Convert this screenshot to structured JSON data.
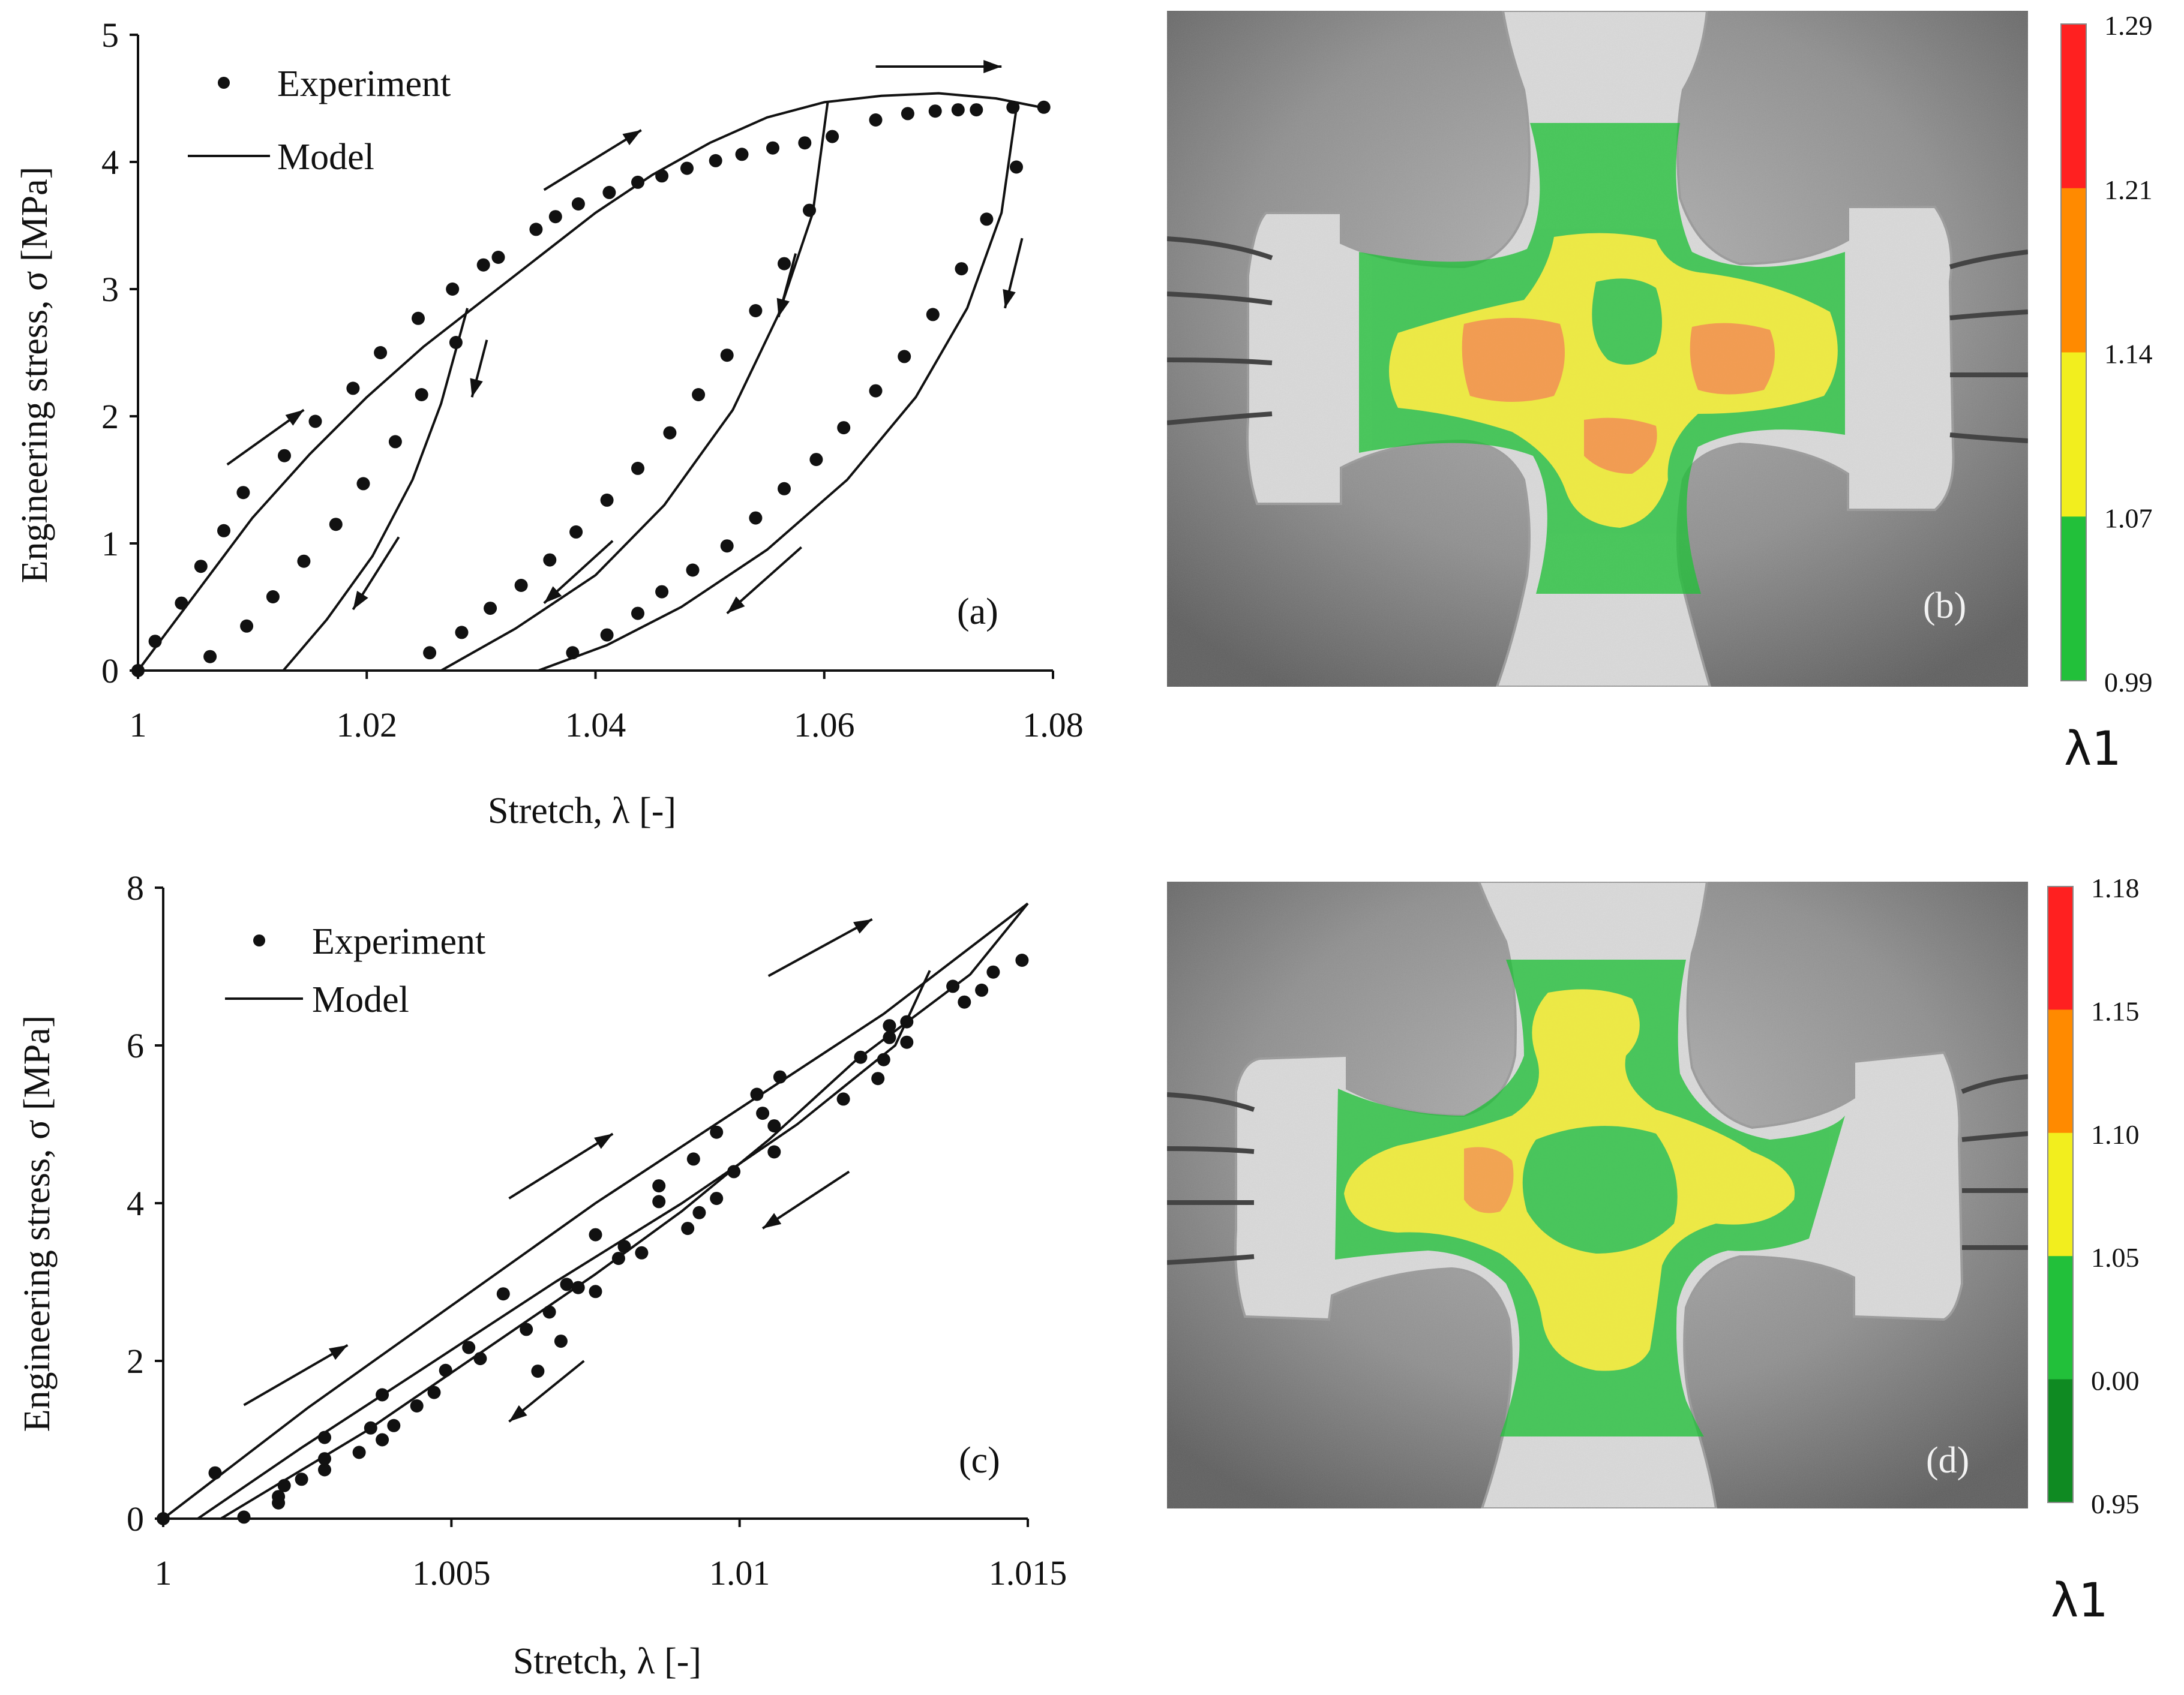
{
  "colors": {
    "ink": "#111111",
    "green": "#22c03a",
    "dark_green": "#0f8a22",
    "yellow": "#f2ee1e",
    "orange": "#ff8a00",
    "red": "#ff2020",
    "photo_bg": "#8e8e8e",
    "specimen": "#d9d9d9"
  },
  "chart_data": [
    {
      "type": "scatter",
      "panel_label": "(a)",
      "xlabel": "Stretch, λ [-]",
      "ylabel": "Engineering stress, σ [MPa]",
      "xlim": [
        1,
        1.08
      ],
      "ylim": [
        0,
        5
      ],
      "xticks": [
        1,
        1.02,
        1.04,
        1.06,
        1.08
      ],
      "xtick_labels": [
        "1",
        "1.02",
        "1.04",
        "1.06",
        "1.08"
      ],
      "yticks": [
        0,
        1,
        2,
        3,
        4,
        5
      ],
      "ytick_labels": [
        "0",
        "1",
        "2",
        "3",
        "4",
        "5"
      ],
      "legend": {
        "placement": "top-left",
        "entries": [
          "Experiment",
          "Model"
        ]
      },
      "series": [
        {
          "name": "Experiment",
          "kind": "points",
          "points": [
            [
              1.0,
              0.0
            ],
            [
              1.0015,
              0.23
            ],
            [
              1.0038,
              0.53
            ],
            [
              1.0055,
              0.82
            ],
            [
              1.0075,
              1.1
            ],
            [
              1.0092,
              1.4
            ],
            [
              1.0128,
              1.69
            ],
            [
              1.0155,
              1.96
            ],
            [
              1.0188,
              2.22
            ],
            [
              1.0212,
              2.5
            ],
            [
              1.0245,
              2.77
            ],
            [
              1.0275,
              3.0
            ],
            [
              1.0302,
              3.19
            ],
            [
              1.0315,
              3.25
            ],
            [
              1.0348,
              3.47
            ],
            [
              1.0365,
              3.57
            ],
            [
              1.0385,
              3.67
            ],
            [
              1.0412,
              3.76
            ],
            [
              1.0437,
              3.84
            ],
            [
              1.0458,
              3.89
            ],
            [
              1.048,
              3.95
            ],
            [
              1.0505,
              4.01
            ],
            [
              1.0528,
              4.06
            ],
            [
              1.0555,
              4.11
            ],
            [
              1.0583,
              4.15
            ],
            [
              1.0607,
              4.2
            ],
            [
              1.0645,
              4.33
            ],
            [
              1.0673,
              4.38
            ],
            [
              1.0697,
              4.4
            ],
            [
              1.0717,
              4.41
            ],
            [
              1.0733,
              4.41
            ],
            [
              1.0765,
              4.43
            ],
            [
              1.0792,
              4.43
            ],
            [
              1.0063,
              0.11
            ],
            [
              1.0095,
              0.35
            ],
            [
              1.0118,
              0.58
            ],
            [
              1.0145,
              0.86
            ],
            [
              1.0173,
              1.15
            ],
            [
              1.0197,
              1.47
            ],
            [
              1.0225,
              1.8
            ],
            [
              1.0248,
              2.17
            ],
            [
              1.0278,
              2.58
            ],
            [
              1.0255,
              0.14
            ],
            [
              1.0283,
              0.3
            ],
            [
              1.0308,
              0.49
            ],
            [
              1.0335,
              0.67
            ],
            [
              1.036,
              0.87
            ],
            [
              1.0383,
              1.09
            ],
            [
              1.041,
              1.34
            ],
            [
              1.0437,
              1.59
            ],
            [
              1.0465,
              1.87
            ],
            [
              1.049,
              2.17
            ],
            [
              1.0515,
              2.48
            ],
            [
              1.054,
              2.83
            ],
            [
              1.0565,
              3.2
            ],
            [
              1.0587,
              3.62
            ],
            [
              1.038,
              0.14
            ],
            [
              1.041,
              0.28
            ],
            [
              1.0437,
              0.45
            ],
            [
              1.0458,
              0.62
            ],
            [
              1.0485,
              0.79
            ],
            [
              1.0515,
              0.98
            ],
            [
              1.054,
              1.2
            ],
            [
              1.0565,
              1.43
            ],
            [
              1.0593,
              1.66
            ],
            [
              1.0617,
              1.91
            ],
            [
              1.0645,
              2.2
            ],
            [
              1.067,
              2.47
            ],
            [
              1.0695,
              2.8
            ],
            [
              1.072,
              3.16
            ],
            [
              1.0742,
              3.55
            ],
            [
              1.0768,
              3.96
            ]
          ]
        },
        {
          "name": "Model",
          "kind": "line",
          "segments": [
            [
              [
                1.0,
                0.0
              ],
              [
                1.005,
                0.6
              ],
              [
                1.01,
                1.2
              ],
              [
                1.015,
                1.7
              ],
              [
                1.02,
                2.15
              ],
              [
                1.025,
                2.55
              ],
              [
                1.03,
                2.9
              ],
              [
                1.035,
                3.25
              ],
              [
                1.04,
                3.6
              ],
              [
                1.045,
                3.9
              ],
              [
                1.05,
                4.15
              ],
              [
                1.055,
                4.35
              ],
              [
                1.06,
                4.47
              ],
              [
                1.065,
                4.52
              ],
              [
                1.07,
                4.54
              ],
              [
                1.075,
                4.5
              ],
              [
                1.0795,
                4.42
              ]
            ],
            [
              [
                1.0288,
                2.85
              ],
              [
                1.0265,
                2.1
              ],
              [
                1.024,
                1.5
              ],
              [
                1.0205,
                0.9
              ],
              [
                1.0165,
                0.4
              ],
              [
                1.0127,
                0.0
              ]
            ],
            [
              [
                1.0603,
                4.47
              ],
              [
                1.059,
                3.6
              ],
              [
                1.056,
                2.8
              ],
              [
                1.052,
                2.05
              ],
              [
                1.046,
                1.3
              ],
              [
                1.04,
                0.75
              ],
              [
                1.033,
                0.33
              ],
              [
                1.0265,
                0.0
              ]
            ],
            [
              [
                1.0768,
                4.42
              ],
              [
                1.0755,
                3.6
              ],
              [
                1.0725,
                2.85
              ],
              [
                1.068,
                2.15
              ],
              [
                1.062,
                1.5
              ],
              [
                1.055,
                0.95
              ],
              [
                1.0475,
                0.5
              ],
              [
                1.041,
                0.2
              ],
              [
                1.035,
                0.0
              ]
            ]
          ]
        }
      ],
      "arrows": [
        {
          "from": [
            1.0078,
            1.62
          ],
          "to": [
            1.0145,
            2.05
          ]
        },
        {
          "from": [
            1.0355,
            3.78
          ],
          "to": [
            1.044,
            4.25
          ]
        },
        {
          "from": [
            1.0645,
            4.75
          ],
          "to": [
            1.0755,
            4.75
          ]
        },
        {
          "from": [
            1.0305,
            2.6
          ],
          "to": [
            1.0292,
            2.15
          ]
        },
        {
          "from": [
            1.0228,
            1.05
          ],
          "to": [
            1.0188,
            0.48
          ]
        },
        {
          "from": [
            1.0575,
            3.28
          ],
          "to": [
            1.056,
            2.78
          ]
        },
        {
          "from": [
            1.0415,
            1.02
          ],
          "to": [
            1.0355,
            0.53
          ]
        },
        {
          "from": [
            1.0773,
            3.4
          ],
          "to": [
            1.0758,
            2.85
          ]
        },
        {
          "from": [
            1.058,
            0.97
          ],
          "to": [
            1.0515,
            0.45
          ]
        }
      ]
    },
    {
      "type": "heatmap",
      "panel_label": "(b)",
      "colorbar_title": "λ1",
      "colorbar_labels": [
        "1.29",
        "1.21",
        "1.14",
        "1.07",
        "0.99"
      ],
      "colorbar_colors": [
        "#ff2020",
        "#ff8a00",
        "#f2ee1e",
        "#22c03a"
      ]
    },
    {
      "type": "scatter",
      "panel_label": "(c)",
      "xlabel": "Stretch, λ [-]",
      "ylabel": "Engineering stress, σ [MPa]",
      "xlim": [
        1,
        1.015
      ],
      "ylim": [
        0,
        8
      ],
      "xticks": [
        1,
        1.005,
        1.01,
        1.015
      ],
      "xtick_labels": [
        "1",
        "1.005",
        "1.01",
        "1.015"
      ],
      "yticks": [
        0,
        2,
        4,
        6,
        8
      ],
      "ytick_labels": [
        "0",
        "2",
        "4",
        "6",
        "8"
      ],
      "legend": {
        "placement": "top-left",
        "entries": [
          "Experiment",
          "Model"
        ]
      },
      "series": [
        {
          "name": "Experiment",
          "kind": "points",
          "points": [
            [
              1.0,
              0.0
            ],
            [
              1.0009,
              0.58
            ],
            [
              1.0014,
              0.02
            ],
            [
              1.002,
              0.2
            ],
            [
              1.002,
              0.28
            ],
            [
              1.0021,
              0.42
            ],
            [
              1.0024,
              0.5
            ],
            [
              1.0028,
              0.62
            ],
            [
              1.0028,
              0.76
            ],
            [
              1.0028,
              1.03
            ],
            [
              1.0034,
              0.84
            ],
            [
              1.0036,
              1.15
            ],
            [
              1.0038,
              1.0
            ],
            [
              1.0038,
              1.57
            ],
            [
              1.004,
              1.18
            ],
            [
              1.0044,
              1.43
            ],
            [
              1.0047,
              1.6
            ],
            [
              1.0049,
              1.88
            ],
            [
              1.0053,
              2.17
            ],
            [
              1.0055,
              2.03
            ],
            [
              1.0059,
              2.85
            ],
            [
              1.0063,
              2.4
            ],
            [
              1.0065,
              1.87
            ],
            [
              1.0067,
              2.62
            ],
            [
              1.0069,
              2.25
            ],
            [
              1.007,
              2.97
            ],
            [
              1.0072,
              2.93
            ],
            [
              1.0075,
              2.88
            ],
            [
              1.0075,
              3.6
            ],
            [
              1.0079,
              3.3
            ],
            [
              1.008,
              3.45
            ],
            [
              1.0083,
              3.37
            ],
            [
              1.0086,
              4.02
            ],
            [
              1.0086,
              4.22
            ],
            [
              1.0091,
              3.68
            ],
            [
              1.0092,
              4.56
            ],
            [
              1.0093,
              3.88
            ],
            [
              1.0096,
              4.06
            ],
            [
              1.0096,
              4.9
            ],
            [
              1.0099,
              4.4
            ],
            [
              1.0103,
              5.38
            ],
            [
              1.0104,
              5.14
            ],
            [
              1.0106,
              4.65
            ],
            [
              1.0106,
              4.98
            ],
            [
              1.0107,
              5.6
            ],
            [
              1.0118,
              5.32
            ],
            [
              1.0121,
              5.85
            ],
            [
              1.0124,
              5.58
            ],
            [
              1.0125,
              5.82
            ],
            [
              1.0126,
              6.1
            ],
            [
              1.0126,
              6.25
            ],
            [
              1.0129,
              6.3
            ],
            [
              1.0129,
              6.04
            ],
            [
              1.0137,
              6.75
            ],
            [
              1.0139,
              6.55
            ],
            [
              1.0142,
              6.7
            ],
            [
              1.0144,
              6.93
            ],
            [
              1.0149,
              7.08
            ]
          ]
        },
        {
          "name": "Model",
          "kind": "line",
          "segments": [
            [
              [
                1.0,
                0.0
              ],
              [
                1.0025,
                1.4
              ],
              [
                1.005,
                2.7
              ],
              [
                1.0075,
                4.0
              ],
              [
                1.01,
                5.2
              ],
              [
                1.0125,
                6.4
              ],
              [
                1.015,
                7.8
              ]
            ],
            [
              [
                1.0133,
                6.95
              ],
              [
                1.0127,
                6.0
              ],
              [
                1.011,
                5.0
              ],
              [
                1.009,
                4.0
              ],
              [
                1.0068,
                3.0
              ],
              [
                1.0045,
                1.9
              ],
              [
                1.0024,
                0.9
              ],
              [
                1.0006,
                0.0
              ]
            ],
            [
              [
                1.015,
                7.8
              ],
              [
                1.014,
                6.9
              ],
              [
                1.012,
                5.8
              ],
              [
                1.0105,
                4.8
              ],
              [
                1.009,
                3.9
              ],
              [
                1.0075,
                3.1
              ],
              [
                1.0055,
                2.1
              ],
              [
                1.0035,
                1.1
              ],
              [
                1.001,
                0.0
              ]
            ]
          ]
        }
      ],
      "arrows": [
        {
          "from": [
            1.0014,
            1.44
          ],
          "to": [
            1.0032,
            2.2
          ]
        },
        {
          "from": [
            1.006,
            4.06
          ],
          "to": [
            1.0078,
            4.88
          ]
        },
        {
          "from": [
            1.0105,
            6.88
          ],
          "to": [
            1.0123,
            7.6
          ]
        },
        {
          "from": [
            1.0073,
            2.0
          ],
          "to": [
            1.006,
            1.23
          ]
        },
        {
          "from": [
            1.0119,
            4.4
          ],
          "to": [
            1.0104,
            3.68
          ]
        }
      ]
    },
    {
      "type": "heatmap",
      "panel_label": "(d)",
      "colorbar_title": "λ1",
      "colorbar_labels": [
        "1.18",
        "1.15",
        "1.10",
        "1.05",
        "0.00",
        "0.95"
      ],
      "colorbar_colors": [
        "#ff2020",
        "#ff8a00",
        "#f2ee1e",
        "#22c03a",
        "#0f8a22"
      ]
    }
  ]
}
